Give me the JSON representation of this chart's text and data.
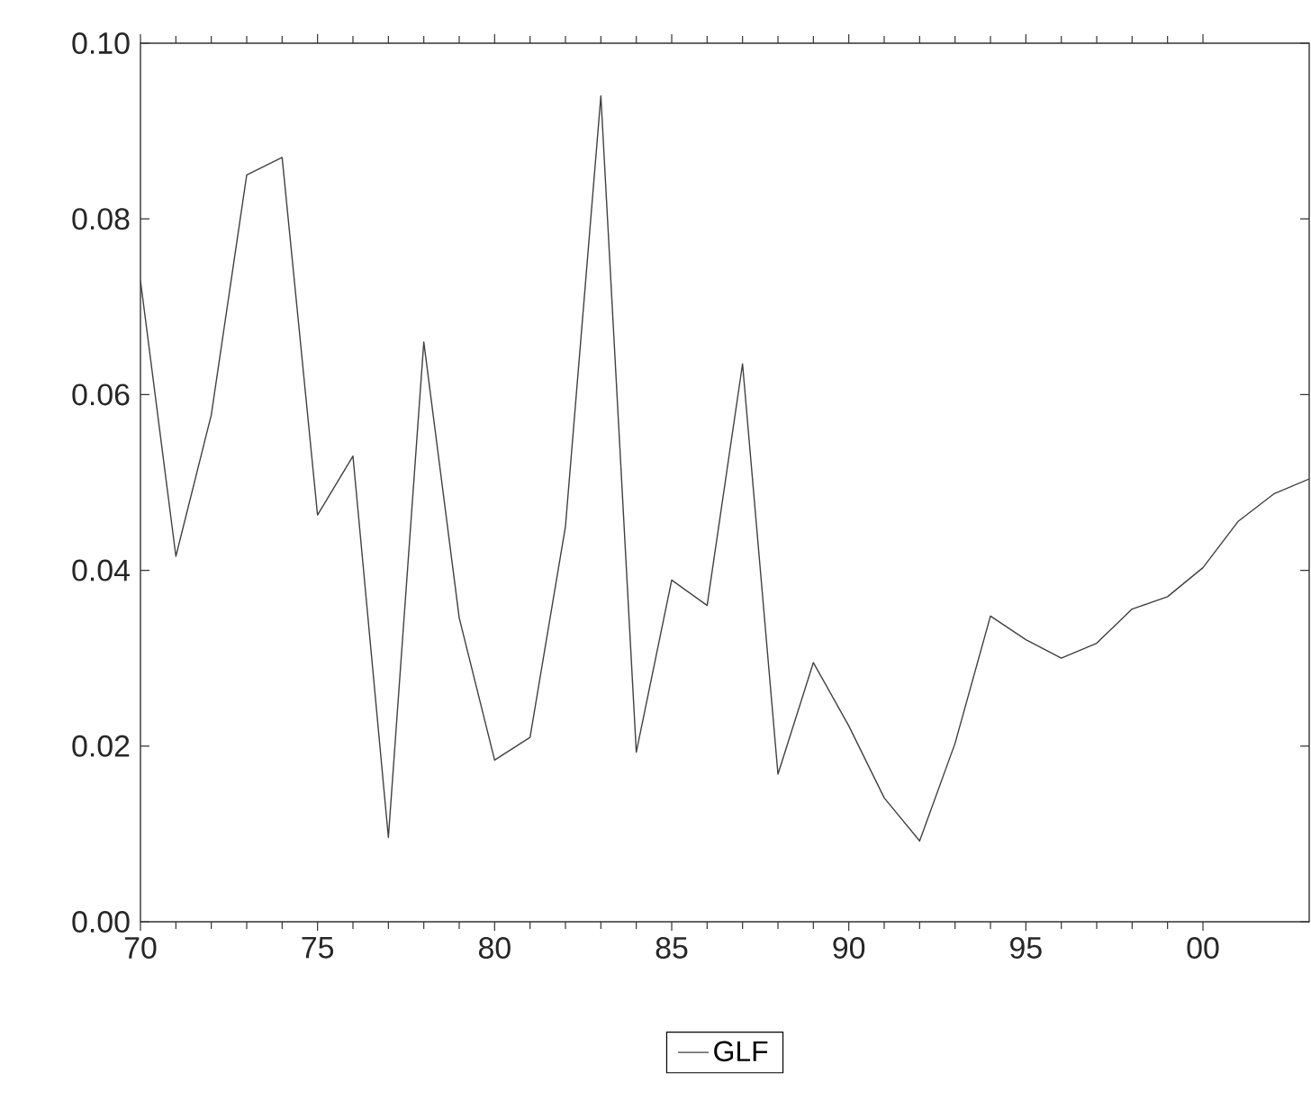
{
  "chart_data": {
    "type": "line",
    "x": [
      1970,
      1971,
      1972,
      1973,
      1974,
      1975,
      1976,
      1977,
      1978,
      1979,
      1980,
      1981,
      1982,
      1983,
      1984,
      1985,
      1986,
      1987,
      1988,
      1989,
      1990,
      1991,
      1992,
      1993,
      1994,
      1995,
      1996,
      1997,
      1998,
      1999,
      2000,
      2001,
      2002,
      2003
    ],
    "series": [
      {
        "name": "GLF",
        "color": "#404040",
        "values": [
          0.073,
          0.0416,
          0.0577,
          0.085,
          0.087,
          0.0463,
          0.053,
          0.0096,
          0.066,
          0.0346,
          0.0184,
          0.021,
          0.045,
          0.094,
          0.0193,
          0.0389,
          0.036,
          0.0635,
          0.0168,
          0.0295,
          0.0223,
          0.0141,
          0.0092,
          0.0203,
          0.0348,
          0.0321,
          0.03,
          0.0317,
          0.0356,
          0.037,
          0.0403,
          0.0456,
          0.0487,
          0.0504
        ]
      }
    ],
    "xlim": [
      1970,
      2003
    ],
    "xticks": [
      {
        "value": 1970,
        "label": "70"
      },
      {
        "value": 1975,
        "label": "75"
      },
      {
        "value": 1980,
        "label": "80"
      },
      {
        "value": 1985,
        "label": "85"
      },
      {
        "value": 1990,
        "label": "90"
      },
      {
        "value": 1995,
        "label": "95"
      },
      {
        "value": 2000,
        "label": "00"
      }
    ],
    "ylim": [
      0,
      0.1
    ],
    "yticks": [
      {
        "value": 0,
        "label": "0.00"
      },
      {
        "value": 0.02,
        "label": "0.02"
      },
      {
        "value": 0.04,
        "label": "0.04"
      },
      {
        "value": 0.06,
        "label": "0.06"
      },
      {
        "value": 0.08,
        "label": "0.08"
      },
      {
        "value": 0.1,
        "label": "0.10"
      }
    ],
    "grid": false,
    "legend": "bottom",
    "marker": "none",
    "line_style": "solid"
  }
}
